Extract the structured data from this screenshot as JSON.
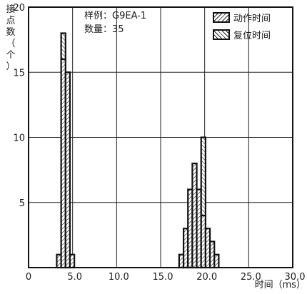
{
  "ylabel_chars": [
    "接",
    "点",
    "数",
    "（",
    "个",
    "）"
  ],
  "xlabel": "时间（ms）",
  "info": {
    "sample_label": "样例：",
    "sample_value": "G9EA-1",
    "count_label": "数量：",
    "count_value": "35"
  },
  "legend": [
    {
      "label": "动作时间",
      "pattern": "diag-135"
    },
    {
      "label": "复位时间",
      "pattern": "diag-45"
    }
  ],
  "chart_data": {
    "type": "bar",
    "title": "",
    "xlabel": "时间（ms）",
    "ylabel": "接点数（个）",
    "xlim": [
      0,
      30
    ],
    "ylim": [
      0,
      20
    ],
    "x_ticks": [
      "0",
      "5.0",
      "10.0",
      "15.0",
      "20.0",
      "25.0",
      "30.0"
    ],
    "y_ticks": [
      "5",
      "10",
      "15",
      "20"
    ],
    "grid": true,
    "legend_position": "top-right",
    "series": [
      {
        "name": "动作时间",
        "bins": [
          {
            "x0": 3.7,
            "x1": 4.2,
            "count": 18
          },
          {
            "x0": 19.6,
            "x1": 20.1,
            "count": 10
          }
        ]
      },
      {
        "name": "复位时间",
        "bins": [
          {
            "x0": 3.2,
            "x1": 3.7,
            "count": 1
          },
          {
            "x0": 3.7,
            "x1": 4.2,
            "count": 16
          },
          {
            "x0": 4.2,
            "x1": 4.7,
            "count": 15
          },
          {
            "x0": 4.7,
            "x1": 5.2,
            "count": 1
          },
          {
            "x0": 17.1,
            "x1": 17.6,
            "count": 1
          },
          {
            "x0": 17.6,
            "x1": 18.1,
            "count": 3
          },
          {
            "x0": 18.1,
            "x1": 18.6,
            "count": 6
          },
          {
            "x0": 18.6,
            "x1": 19.1,
            "count": 8
          },
          {
            "x0": 19.1,
            "x1": 19.6,
            "count": 6
          },
          {
            "x0": 19.6,
            "x1": 20.1,
            "count": 4
          },
          {
            "x0": 20.1,
            "x1": 20.6,
            "count": 3
          },
          {
            "x0": 20.6,
            "x1": 21.1,
            "count": 2
          },
          {
            "x0": 21.1,
            "x1": 21.6,
            "count": 1
          }
        ]
      }
    ]
  }
}
